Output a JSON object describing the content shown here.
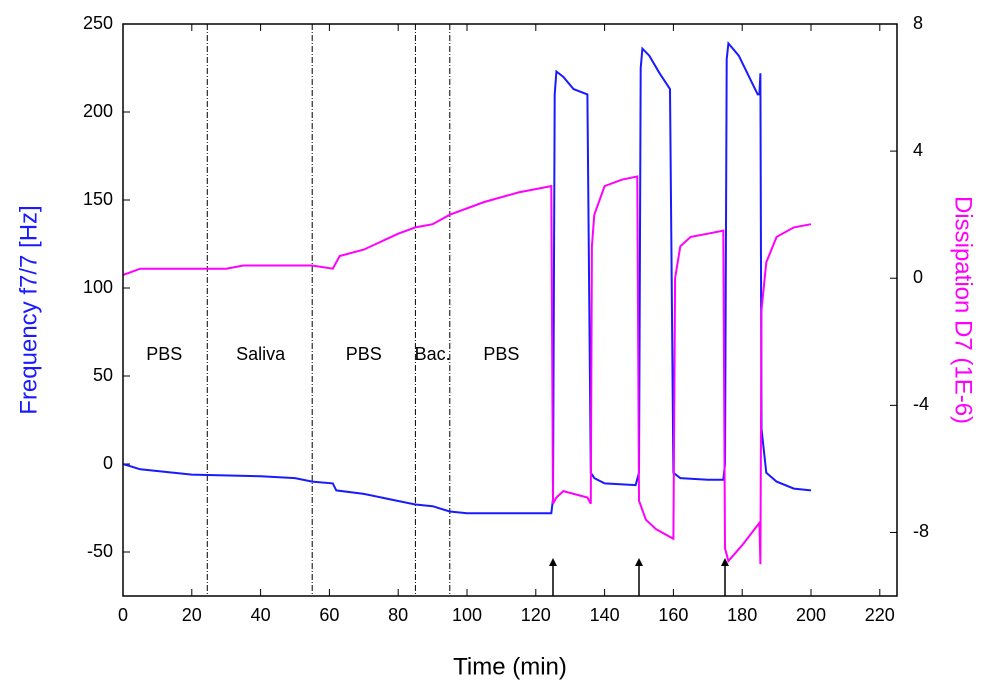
{
  "chart_data": {
    "type": "line",
    "xlabel": "Time (min)",
    "ylabel": "Frequency f7/7 [Hz]",
    "y2label": "Dissipation D7 (1E-6)",
    "xlim": [
      0,
      225
    ],
    "ylim": [
      -75,
      250
    ],
    "y2lim": [
      -10,
      8
    ],
    "xticks": [
      0,
      20,
      40,
      60,
      80,
      100,
      120,
      140,
      160,
      180,
      200,
      220
    ],
    "yticks": [
      -50,
      0,
      50,
      100,
      150,
      200,
      250
    ],
    "y2ticks": [
      -8,
      -4,
      0,
      4,
      8
    ],
    "vlines": [
      24.5,
      55,
      85,
      95
    ],
    "arrows": [
      125,
      150,
      175
    ],
    "annotations": [
      "PBS",
      "Saliva",
      "PBS",
      "Bac.",
      "PBS"
    ],
    "series": [
      {
        "color": "#1a1aff",
        "axis": "y",
        "x": [
          0,
          5,
          20,
          40,
          50,
          55,
          61,
          62,
          70,
          80,
          85,
          90,
          95,
          100,
          110,
          124.5,
          125,
          125.5,
          126,
          128,
          131,
          135,
          136,
          137,
          140,
          149,
          150,
          150.5,
          151,
          153,
          156,
          159,
          160,
          162,
          170,
          174.5,
          175,
          175.5,
          176,
          179,
          182,
          184.5,
          185,
          185.3,
          185.6,
          187,
          190,
          195,
          200
        ],
        "values": [
          0,
          -3,
          -6,
          -7,
          -8,
          -10,
          -11,
          -15,
          -17,
          -21,
          -23,
          -24,
          -27,
          -28,
          -28,
          -28,
          -20,
          210,
          223,
          220,
          213,
          210,
          -5,
          -8,
          -11,
          -12,
          -5,
          225,
          236,
          232,
          222,
          213,
          -5,
          -8,
          -9,
          -9,
          0,
          230,
          239,
          232,
          220,
          210,
          210,
          222,
          20,
          -5,
          -10,
          -14,
          -15
        ]
      },
      {
        "color": "#ff00ff",
        "axis": "y2",
        "x": [
          0,
          5,
          20,
          30,
          35,
          55,
          61,
          63,
          70,
          80,
          85,
          90,
          95,
          105,
          115,
          124.5,
          125,
          126,
          128,
          135,
          136,
          136.3,
          137,
          140,
          145,
          149.5,
          150,
          152,
          155,
          160,
          160.5,
          162,
          165,
          170,
          174.5,
          175,
          176,
          180,
          185,
          185.3,
          185.6,
          187,
          190,
          195,
          200
        ],
        "values": [
          0.1,
          0.3,
          0.3,
          0.3,
          0.4,
          0.4,
          0.3,
          0.7,
          0.9,
          1.4,
          1.6,
          1.7,
          2.0,
          2.4,
          2.7,
          2.9,
          -7.1,
          -6.9,
          -6.7,
          -6.9,
          -7.1,
          1.0,
          2.0,
          2.9,
          3.1,
          3.2,
          -7.0,
          -7.6,
          -7.9,
          -8.2,
          0,
          1.0,
          1.3,
          1.4,
          1.5,
          -8.5,
          -8.9,
          -8.4,
          -7.7,
          -9.0,
          -1,
          0.5,
          1.3,
          1.6,
          1.7
        ]
      }
    ]
  }
}
